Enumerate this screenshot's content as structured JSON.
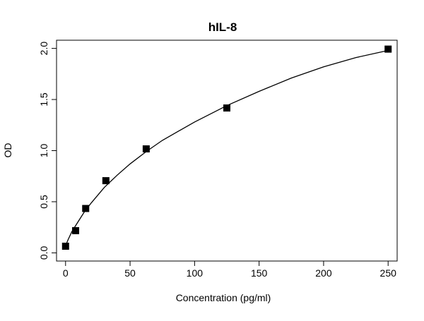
{
  "chart_data": {
    "type": "scatter",
    "title": "hIL-8",
    "xlabel": "Concentration (pg/ml)",
    "ylabel": "OD",
    "xlim": [
      -7,
      257
    ],
    "ylim": [
      -0.08,
      2.08
    ],
    "xticks": [
      0,
      50,
      100,
      150,
      200,
      250
    ],
    "xtick_labels": [
      "0",
      "50",
      "100",
      "150",
      "200",
      "250"
    ],
    "yticks": [
      0,
      0.5,
      1,
      1.5,
      2
    ],
    "ytick_labels": [
      "0.0",
      "0.5",
      "1.0",
      "1.5",
      "2.0"
    ],
    "grid": false,
    "series": [
      {
        "name": "standards",
        "kind": "points",
        "marker": "square",
        "color": "#000000",
        "x": [
          0,
          7.8,
          15.6,
          31.25,
          62.5,
          125,
          250
        ],
        "y": [
          0.065,
          0.217,
          0.434,
          0.706,
          1.017,
          1.417,
          1.993
        ]
      },
      {
        "name": "fit",
        "kind": "line",
        "color": "#000000",
        "x": [
          0,
          2,
          5,
          10,
          15,
          20,
          30,
          40,
          50,
          62.5,
          75,
          100,
          125,
          150,
          175,
          200,
          225,
          250
        ],
        "y": [
          0.07,
          0.13,
          0.21,
          0.31,
          0.41,
          0.49,
          0.64,
          0.76,
          0.87,
          0.99,
          1.1,
          1.28,
          1.44,
          1.58,
          1.71,
          1.82,
          1.91,
          1.98
        ]
      }
    ]
  }
}
